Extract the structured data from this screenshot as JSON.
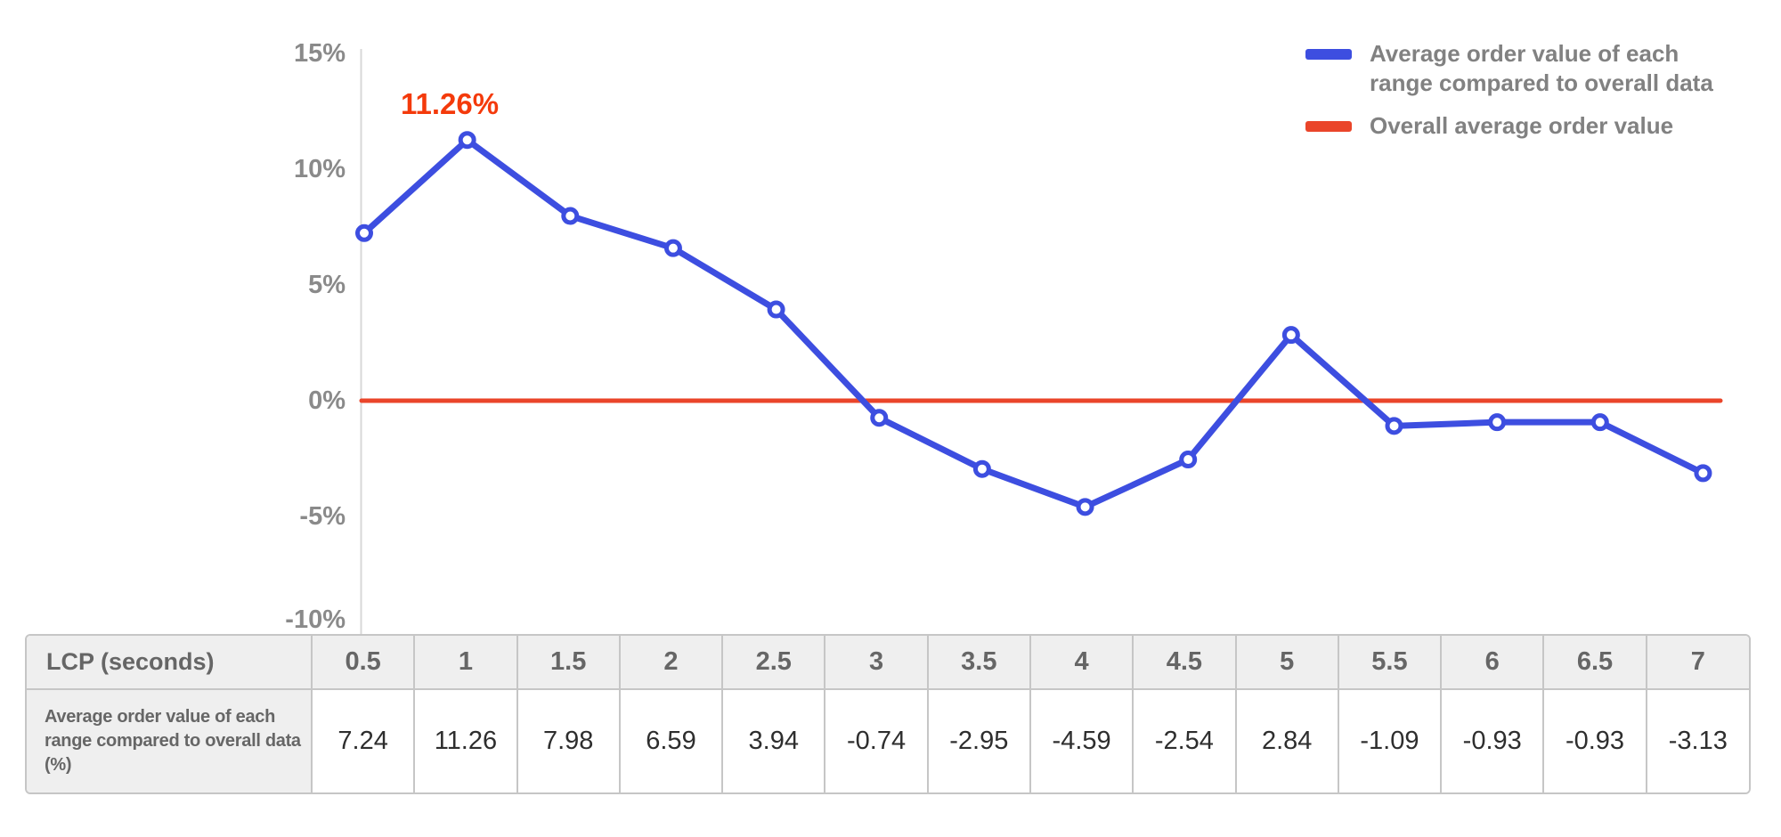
{
  "chart_data": {
    "type": "line",
    "title": "",
    "xlabel": "LCP (seconds)",
    "ylabel": "",
    "categories": [
      "0.5",
      "1",
      "1.5",
      "2",
      "2.5",
      "3",
      "3.5",
      "4",
      "4.5",
      "5",
      "5.5",
      "6",
      "6.5",
      "7"
    ],
    "series": [
      {
        "name": "Average order value of each range compared to overall data",
        "values": [
          7.24,
          11.26,
          7.98,
          6.59,
          3.94,
          -0.74,
          -2.95,
          -4.59,
          -2.54,
          2.84,
          -1.09,
          -0.93,
          -0.93,
          -3.13
        ],
        "color": "#3d4ee0",
        "marker": "circle"
      },
      {
        "name": "Overall average order value",
        "values": [
          0,
          0,
          0,
          0,
          0,
          0,
          0,
          0,
          0,
          0,
          0,
          0,
          0,
          0
        ],
        "color": "#ea452a",
        "marker": "none"
      }
    ],
    "ylim": [
      -10,
      15
    ],
    "yticks": [
      {
        "value": 15,
        "label": "15%"
      },
      {
        "value": 10,
        "label": "10%"
      },
      {
        "value": 5,
        "label": "5%"
      },
      {
        "value": 0,
        "label": "0%"
      },
      {
        "value": -5,
        "label": "-5%"
      },
      {
        "value": -10,
        "label": "-10%"
      }
    ],
    "grid": false,
    "legend_position": "top-right",
    "annotation": {
      "text": "11.26%",
      "at_category": "1",
      "value": 11.26,
      "color": "#f43a0b"
    }
  },
  "legend": {
    "items": [
      {
        "lines": [
          "Average order value of each",
          "range compared to overall data"
        ],
        "color": "#3d4ee0"
      },
      {
        "lines": [
          "Overall average order value"
        ],
        "color": "#ea452a"
      }
    ]
  },
  "table": {
    "header_label": "LCP (seconds)",
    "columns": [
      "0.5",
      "1",
      "1.5",
      "2",
      "2.5",
      "3",
      "3.5",
      "4",
      "4.5",
      "5",
      "5.5",
      "6",
      "6.5",
      "7"
    ],
    "row_label": "Average order value of each range compared to overall data (%)",
    "values": [
      "7.24",
      "11.26",
      "7.98",
      "6.59",
      "3.94",
      "-0.74",
      "-2.95",
      "-4.59",
      "-2.54",
      "2.84",
      "-1.09",
      "-0.93",
      "-0.93",
      "-3.13"
    ]
  },
  "colors": {
    "line_blue": "#3d4ee0",
    "line_red": "#ea452a",
    "annotation_red": "#f43a0b",
    "axis_gray": "#d8d8d8",
    "text_gray": "#8a8a8a",
    "table_border": "#c6c6c6",
    "table_head_bg": "#efefef"
  }
}
